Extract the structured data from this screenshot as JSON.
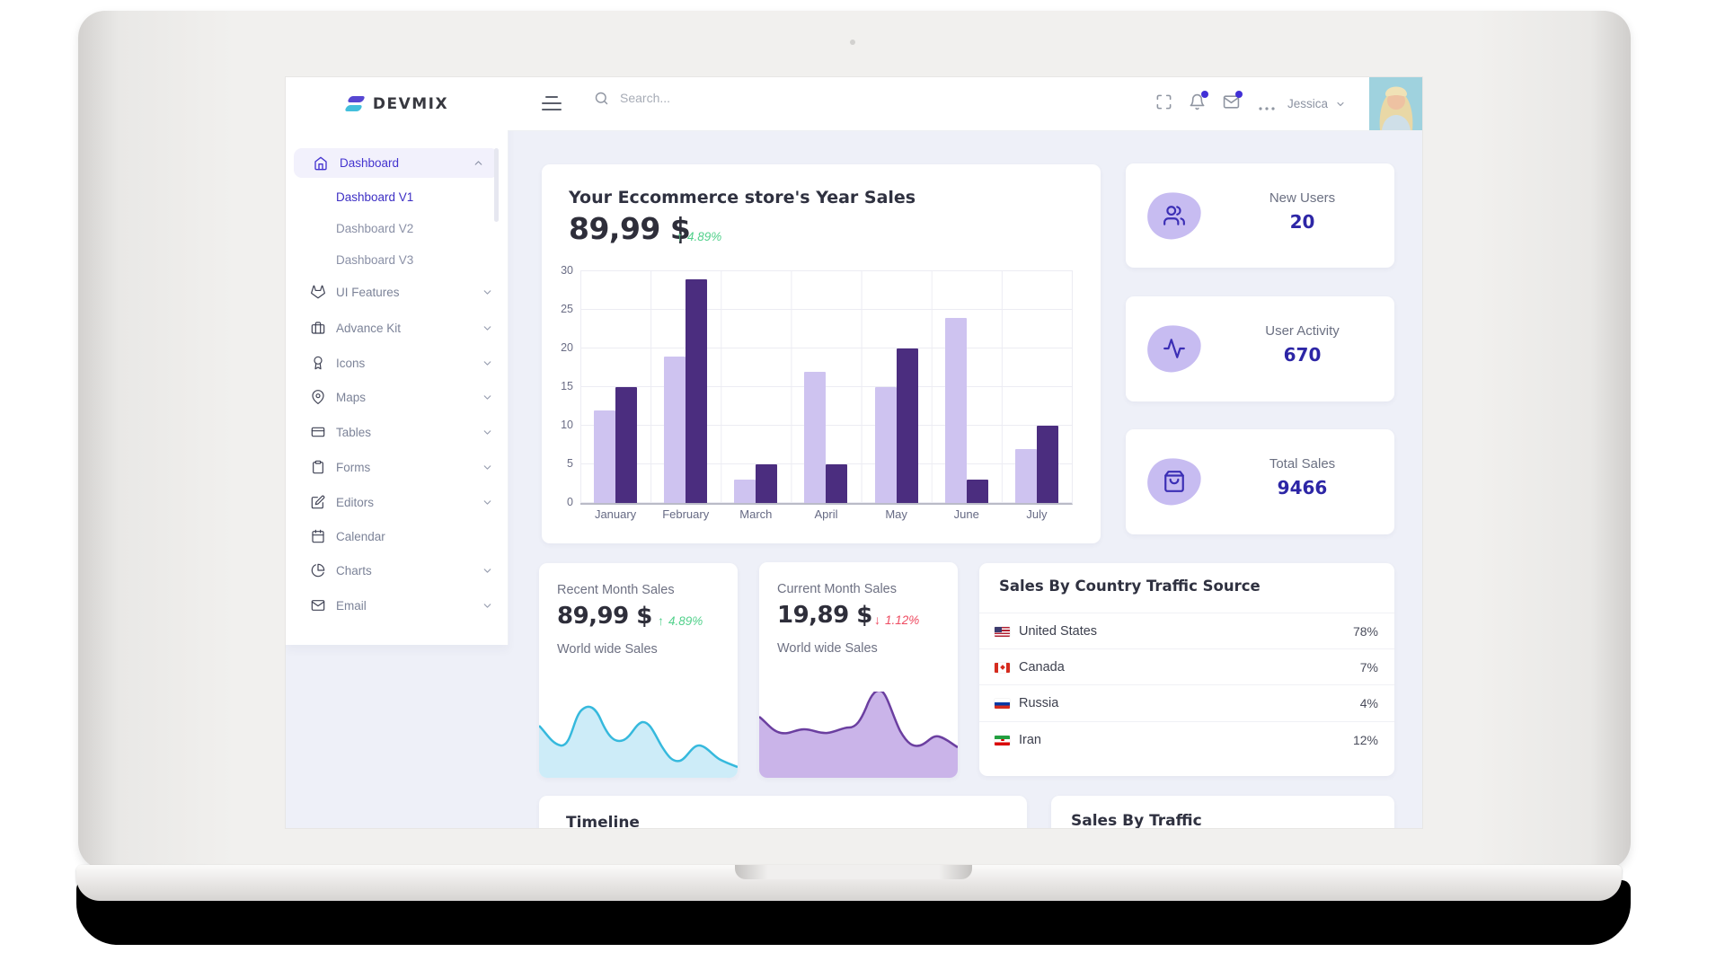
{
  "sidebar": {
    "logo_text": "DEVMIX",
    "dashboard_label": "Dashboard",
    "sub_items": [
      {
        "label": "Dashboard V1",
        "active": true
      },
      {
        "label": "Dashboard V2",
        "active": false
      },
      {
        "label": "Dashboard V3",
        "active": false
      }
    ],
    "items": [
      {
        "label": "UI Features",
        "icon": "gitlab"
      },
      {
        "label": "Advance Kit",
        "icon": "briefcase"
      },
      {
        "label": "Icons",
        "icon": "award"
      },
      {
        "label": "Maps",
        "icon": "map-pin"
      },
      {
        "label": "Tables",
        "icon": "credit-card"
      },
      {
        "label": "Forms",
        "icon": "clipboard"
      },
      {
        "label": "Editors",
        "icon": "edit"
      },
      {
        "label": "Calendar",
        "icon": "calendar"
      },
      {
        "label": "Charts",
        "icon": "pie-chart"
      },
      {
        "label": "Email",
        "icon": "mail"
      }
    ]
  },
  "header": {
    "search_placeholder": "Search...",
    "user_name": "Jessica",
    "icons": [
      "maximize-icon",
      "bell-icon",
      "mail-icon",
      "ellipsis-icon"
    ]
  },
  "main": {
    "year_sales": {
      "title": "Your Eccommerce store's Year Sales",
      "amount": "89,99 $",
      "arrow": "↑",
      "delta": "4.89%"
    },
    "chart_data": {
      "type": "bar",
      "categories": [
        "January",
        "February",
        "March",
        "April",
        "May",
        "June",
        "July"
      ],
      "series": [
        {
          "name": "light",
          "color": "#cec3f0",
          "values": [
            12,
            19,
            3,
            17,
            15,
            24,
            7
          ]
        },
        {
          "name": "dark",
          "color": "#4b2d7f",
          "values": [
            15,
            29,
            5,
            5,
            20,
            3,
            10
          ]
        }
      ],
      "yticks": [
        0,
        5,
        10,
        15,
        20,
        25,
        30
      ],
      "ylim": [
        0,
        30
      ],
      "grid": true,
      "legend": "none"
    },
    "stats": [
      {
        "label": "New Users",
        "value": "20",
        "icon": "users-icon"
      },
      {
        "label": "User Activity",
        "value": "670",
        "icon": "activity-icon"
      },
      {
        "label": "Total Sales",
        "value": "9466",
        "icon": "shopping-bag-icon"
      }
    ],
    "recent": {
      "title": "Recent Month Sales",
      "amount": "89,99 $",
      "arrow": "↑",
      "delta": "4.89%",
      "subtitle": "World wide Sales",
      "sparkline": {
        "type": "area",
        "stroke": "#36b9dd",
        "fill": "#cdecf8"
      }
    },
    "current": {
      "title": "Current Month Sales",
      "amount": "19,89 $",
      "arrow": "↓",
      "delta": "1.12%",
      "subtitle": "World wide Sales",
      "sparkline": {
        "type": "area",
        "stroke": "#6b3fa0",
        "fill": "#cab4e9"
      }
    },
    "country": {
      "title": "Sales By Country Traffic Source",
      "rows": [
        {
          "name": "United States",
          "percent": "78%",
          "flag": "us"
        },
        {
          "name": "Canada",
          "percent": "7%",
          "flag": "ca"
        },
        {
          "name": "Russia",
          "percent": "4%",
          "flag": "ru"
        },
        {
          "name": "Iran",
          "percent": "12%",
          "flag": "ir"
        }
      ]
    },
    "timeline": {
      "title": "Timeline"
    },
    "traffic": {
      "title": "Sales By Traffic"
    }
  },
  "colors": {
    "accent": "#4434cf",
    "stat_number": "#2d26a6",
    "green": "#53d18c",
    "red": "#ee4b61",
    "bar_light": "#cec3f0",
    "bar_dark": "#4b2d7f",
    "page_bg": "#eef0f8"
  }
}
